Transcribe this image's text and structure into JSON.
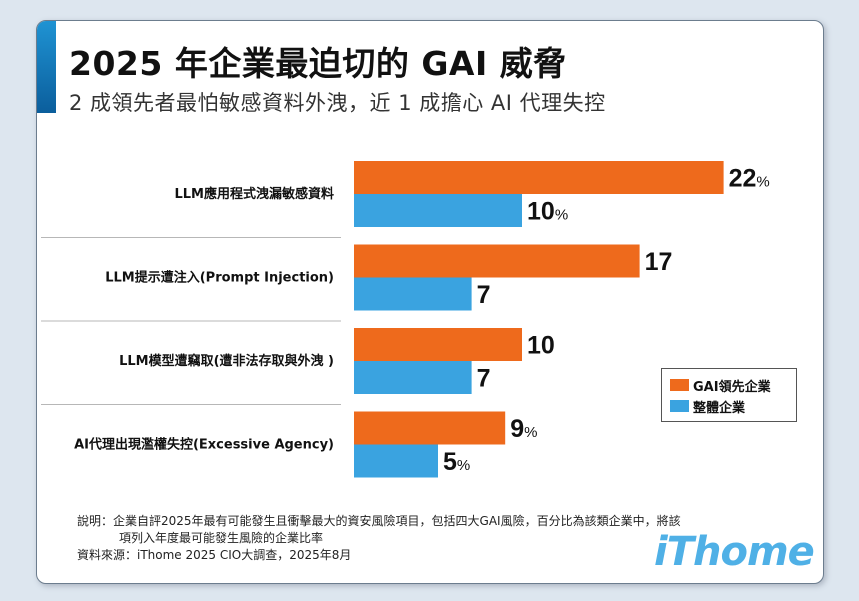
{
  "header": {
    "title": "2025 年企業最迫切的 GAI 威脅",
    "subtitle": "2 成領先者最怕敏感資料外洩，近 1 成擔心 AI 代理失控"
  },
  "chart_data": {
    "type": "bar",
    "orientation": "horizontal",
    "categories": [
      "LLM應用程式洩漏敏感資料",
      "LLM提示遭注入(Prompt Injection)",
      "LLM模型遭竊取(遭非法存取與外洩 )",
      "AI代理出現濫權失控(Excessive Agency)"
    ],
    "series": [
      {
        "name": "GAI領先企業",
        "values": [
          22,
          17,
          10,
          9
        ],
        "color": "#ee6a1c"
      },
      {
        "name": "整體企業",
        "values": [
          10,
          7,
          7,
          5
        ],
        "color": "#3aa3e0"
      }
    ],
    "value_labels": [
      [
        "22",
        "10"
      ],
      [
        "17",
        "7"
      ],
      [
        "10",
        "7"
      ],
      [
        "9",
        "5"
      ]
    ],
    "percent_sign_on": [
      [
        true,
        true
      ],
      [
        false,
        false
      ],
      [
        false,
        false
      ],
      [
        true,
        true
      ]
    ],
    "unit": "%",
    "legend_position": "right",
    "grid": false
  },
  "footer": {
    "note_line1": "說明：企業自評2025年最有可能發生且衝擊最大的資安風險項目，包括四大GAI風險，百分比為該類企業中，將該",
    "note_line2": "項列入年度最可能發生風險的企業比率",
    "source": "資料來源：iThome 2025 CIO大調查，2025年8月",
    "logo": "iThome"
  }
}
